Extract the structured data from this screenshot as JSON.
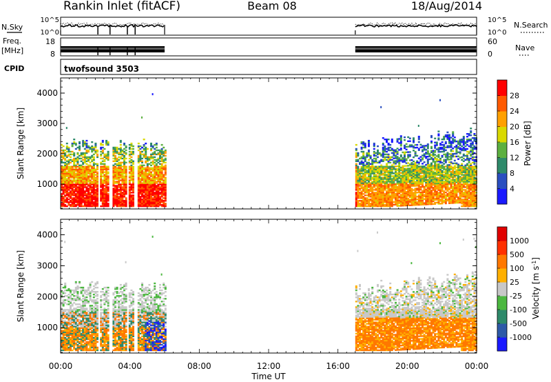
{
  "header": {
    "station_title": "Rankin Inlet (fitACF)",
    "beam": "Beam 08",
    "date": "18/Aug/2014"
  },
  "top_strips": {
    "nsky_label": "N.Sky",
    "nsky_ticks": [
      "10^5",
      "10^0"
    ],
    "nsearch_label": "N.Search",
    "nsearch_ticks": [
      "10^5",
      "10^0"
    ],
    "freq_label_line1": "Freq.",
    "freq_label_line2": "[MHz]",
    "freq_ticks": [
      "18",
      "8"
    ],
    "nave_label": "Nave",
    "nave_ticks": [
      "60",
      "0"
    ],
    "cpid_label": "CPID",
    "cpid_value": "twofsound 3503",
    "data_intervals_utc_hours": [
      [
        0.0,
        6.0
      ],
      [
        17.0,
        24.0
      ]
    ],
    "gaps_utc_hours": [
      2.15,
      2.85,
      3.85,
      4.3
    ]
  },
  "chart_data": [
    {
      "type": "heatmap",
      "title": "",
      "xlabel": "Time UT",
      "ylabel": "Slant Range [km]",
      "x_ticks": [
        "00:00",
        "04:00",
        "08:00",
        "12:00",
        "16:00",
        "20:00",
        "00:00"
      ],
      "xlim_hours": [
        0,
        24
      ],
      "y_ticks": [
        "1000",
        "2000",
        "3000",
        "4000"
      ],
      "ylim_km": [
        180,
        4500
      ],
      "colorbar_label": "Power [dB]",
      "colorbar_ticks": [
        "4",
        "8",
        "12",
        "16",
        "20",
        "24",
        "28"
      ],
      "colorbar_range": [
        0,
        32
      ],
      "colorbar_colors": [
        "#1a1aff",
        "#2a4fc0",
        "#2e8a6a",
        "#5cb040",
        "#d9d900",
        "#ffa000",
        "#ff5a00",
        "#ff0000"
      ],
      "data_intervals_utc_hours": [
        [
          0.0,
          6.0
        ],
        [
          17.0,
          24.0
        ]
      ]
    },
    {
      "type": "heatmap",
      "title": "",
      "xlabel": "Time UT",
      "ylabel": "Slant Range [km]",
      "x_ticks": [
        "00:00",
        "04:00",
        "08:00",
        "12:00",
        "16:00",
        "20:00",
        "00:00"
      ],
      "xlim_hours": [
        0,
        24
      ],
      "y_ticks": [
        "1000",
        "2000",
        "3000",
        "4000"
      ],
      "ylim_km": [
        180,
        4500
      ],
      "colorbar_label_main": "Velocity  [m s",
      "colorbar_label_sup": "-1",
      "colorbar_label_end": "]",
      "colorbar_ticks": [
        "1000",
        "500",
        "100",
        "25",
        "-25",
        "-100",
        "-500",
        "-1000"
      ],
      "colorbar_colors": [
        "#1a1aff",
        "#2e5aa8",
        "#2e8a6a",
        "#4cb840",
        "#c8c8c8",
        "#ffb000",
        "#ff7800",
        "#ff3000",
        "#e00000"
      ],
      "data_intervals_utc_hours": [
        [
          0.0,
          6.0
        ],
        [
          17.0,
          24.0
        ]
      ]
    }
  ]
}
